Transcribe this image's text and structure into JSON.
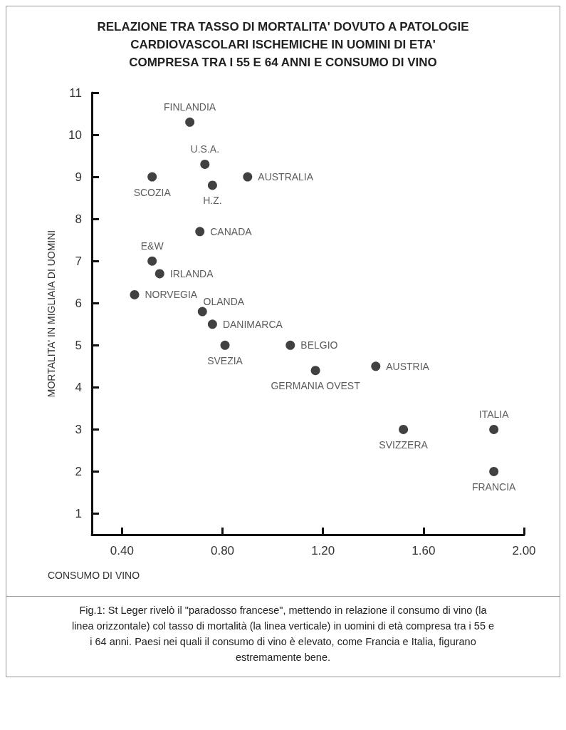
{
  "chart_data": {
    "type": "scatter",
    "title": "RELAZIONE TRA TASSO DI MORTALITA' DOVUTO A PATOLOGIE CARDIOVASCOLARI ISCHEMICHE IN UOMINI DI ETA' COMPRESA TRA I 55 E 64 ANNI E CONSUMO DI VINO",
    "xlabel": "CONSUMO DI VINO",
    "ylabel": "MORTALITA' IN MIGLIAIA DI UOMINI",
    "series": [
      {
        "color": "#111111",
        "x": [
          0.67,
          0.73,
          0.52,
          0.76,
          0.9,
          0.71,
          0.52,
          0.55,
          0.45,
          0.72,
          0.76,
          0.81,
          1.07,
          1.17,
          1.41,
          1.52,
          1.88,
          1.88
        ],
        "values": [
          10.3,
          9.3,
          9.0,
          8.8,
          9.0,
          7.7,
          7.0,
          6.7,
          6.2,
          5.8,
          5.5,
          5.0,
          5.0,
          4.4,
          4.5,
          3.0,
          3.0,
          2.0
        ]
      }
    ],
    "annotations": [
      {
        "text": "FINLANDIA",
        "x": 0.67,
        "y": 10.3
      },
      {
        "text": "U.S.A.",
        "x": 0.73,
        "y": 9.3
      },
      {
        "text": "SCOZIA",
        "x": 0.52,
        "y": 9.0
      },
      {
        "text": "H.Z.",
        "x": 0.76,
        "y": 8.8
      },
      {
        "text": "AUSTRALIA",
        "x": 0.9,
        "y": 9.0
      },
      {
        "text": "CANADA",
        "x": 0.71,
        "y": 7.7
      },
      {
        "text": "E&W",
        "x": 0.52,
        "y": 7.0
      },
      {
        "text": "IRLANDA",
        "x": 0.55,
        "y": 6.7
      },
      {
        "text": "NORVEGIA",
        "x": 0.45,
        "y": 6.2
      },
      {
        "text": "OLANDA",
        "x": 0.72,
        "y": 5.8
      },
      {
        "text": "DANIMARCA",
        "x": 0.76,
        "y": 5.5
      },
      {
        "text": "SVEZIA",
        "x": 0.81,
        "y": 5.0
      },
      {
        "text": "BELGIO",
        "x": 1.07,
        "y": 5.0
      },
      {
        "text": "GERMANIA OVEST",
        "x": 1.17,
        "y": 4.4
      },
      {
        "text": "AUSTRIA",
        "x": 1.41,
        "y": 4.5
      },
      {
        "text": "SVIZZERA",
        "x": 1.52,
        "y": 3.0
      },
      {
        "text": "ITALIA",
        "x": 1.88,
        "y": 3.0
      },
      {
        "text": "FRANCIA",
        "x": 1.88,
        "y": 2.0
      },
      "Fig.1: St Leger rivelò il \"paradosso francese\", mettendo in relazione il consumo di vino (la linea orizzontale) col tasso di mortalità (la linea verticale) in uomini di età compresa tra i 55 e i 64 anni. Paesi nei quali il consumo di vino è elevato, come Francia e Italia, figurano estremamente bene."
    ],
    "xlim": [
      0.28,
      2.0
    ],
    "xticks": [
      {
        "value": 0.4,
        "label": "0.40"
      },
      {
        "value": 0.8,
        "label": "0.80"
      },
      {
        "value": 1.2,
        "label": "1.20"
      },
      {
        "value": 1.6,
        "label": "1.60"
      },
      {
        "value": 2.0,
        "label": "2.00"
      }
    ],
    "ylim": [
      0.5,
      11
    ],
    "yticks": [
      1,
      2,
      3,
      4,
      5,
      6,
      7,
      8,
      9,
      10,
      11
    ],
    "grid": false,
    "marker": "circle"
  }
}
